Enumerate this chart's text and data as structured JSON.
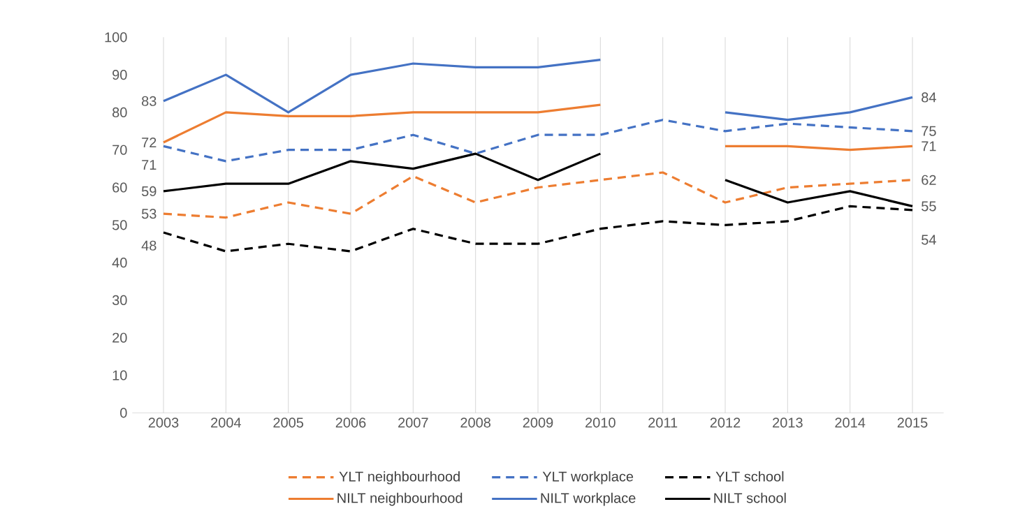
{
  "chart_data": {
    "type": "line",
    "categories": [
      "2003",
      "2004",
      "2005",
      "2006",
      "2007",
      "2008",
      "2009",
      "2010",
      "2011",
      "2012",
      "2013",
      "2014",
      "2015"
    ],
    "ylim": [
      0,
      100
    ],
    "yticks": [
      0,
      10,
      20,
      30,
      40,
      50,
      60,
      70,
      80,
      90,
      100
    ],
    "grid": "x",
    "legend": "bottom",
    "marker": "none",
    "series": [
      {
        "name": "YLT neighbourhood",
        "color": "#ed7d31",
        "line_style": "dashed",
        "values": [
          53,
          52,
          56,
          53,
          63,
          56,
          60,
          62,
          64,
          56,
          60,
          61,
          62
        ],
        "value_labels": [
          "53",
          null,
          null,
          null,
          null,
          null,
          null,
          null,
          null,
          null,
          null,
          null,
          "62"
        ]
      },
      {
        "name": "YLT workplace",
        "color": "#4472c4",
        "line_style": "dashed",
        "values": [
          71,
          67,
          70,
          70,
          74,
          69,
          74,
          74,
          78,
          75,
          77,
          76,
          75
        ],
        "value_labels": [
          "71",
          null,
          null,
          null,
          null,
          null,
          null,
          null,
          null,
          null,
          null,
          null,
          "75"
        ]
      },
      {
        "name": "YLT school",
        "color": "#000000",
        "line_style": "dashed",
        "values": [
          48,
          43,
          45,
          43,
          49,
          45,
          45,
          49,
          51,
          50,
          51,
          55,
          54
        ],
        "value_labels": [
          "48",
          null,
          null,
          null,
          null,
          null,
          null,
          null,
          null,
          null,
          null,
          null,
          "54"
        ]
      },
      {
        "name": "NILT neighbourhood",
        "color": "#ed7d31",
        "line_style": "solid",
        "values": [
          72,
          80,
          79,
          79,
          80,
          80,
          80,
          82,
          null,
          71,
          71,
          70,
          71
        ],
        "value_labels": [
          "72",
          null,
          null,
          null,
          null,
          null,
          null,
          null,
          null,
          null,
          null,
          null,
          "71"
        ]
      },
      {
        "name": "NILT workplace",
        "color": "#4472c4",
        "line_style": "solid",
        "values": [
          83,
          90,
          80,
          90,
          93,
          92,
          92,
          94,
          null,
          80,
          78,
          80,
          84
        ],
        "value_labels": [
          "83",
          null,
          null,
          null,
          null,
          null,
          null,
          null,
          null,
          null,
          null,
          null,
          "84"
        ]
      },
      {
        "name": "NILT school",
        "color": "#000000",
        "line_style": "solid",
        "values": [
          59,
          61,
          61,
          67,
          65,
          69,
          62,
          69,
          null,
          62,
          56,
          59,
          55
        ],
        "value_labels": [
          "59",
          null,
          null,
          null,
          null,
          null,
          null,
          null,
          null,
          null,
          null,
          null,
          "55"
        ]
      }
    ]
  }
}
